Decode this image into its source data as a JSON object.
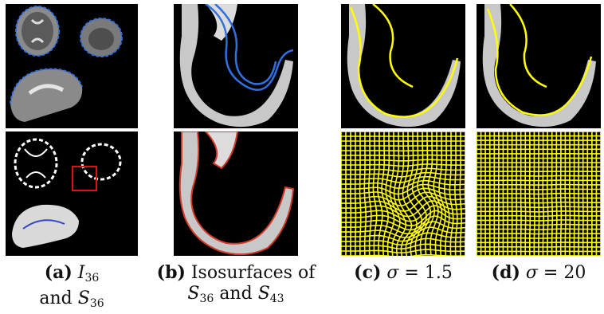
{
  "figure": {
    "captions": [
      {
        "letter": "(a)",
        "line1_var": "I",
        "line1_sub": "36",
        "line2_text": "and",
        "line2_var": "S",
        "line2_sub": "36"
      },
      {
        "letter": "(b)",
        "line1_text": "Isosurfaces of",
        "line2_var1": "S",
        "line2_sub1": "36",
        "line2_mid": "and",
        "line2_var2": "S",
        "line2_sub2": "43"
      },
      {
        "letter": "(c)",
        "sym": "σ",
        "eq": "= 1.5"
      },
      {
        "letter": "(d)",
        "sym": "σ",
        "eq": "= 20"
      }
    ],
    "colors": {
      "contour_blue": "#2f6fe0",
      "contour_yellow": "#ffff00",
      "contour_red": "#d23a2a",
      "roi_box": "#e01010",
      "background": "#000000"
    }
  }
}
